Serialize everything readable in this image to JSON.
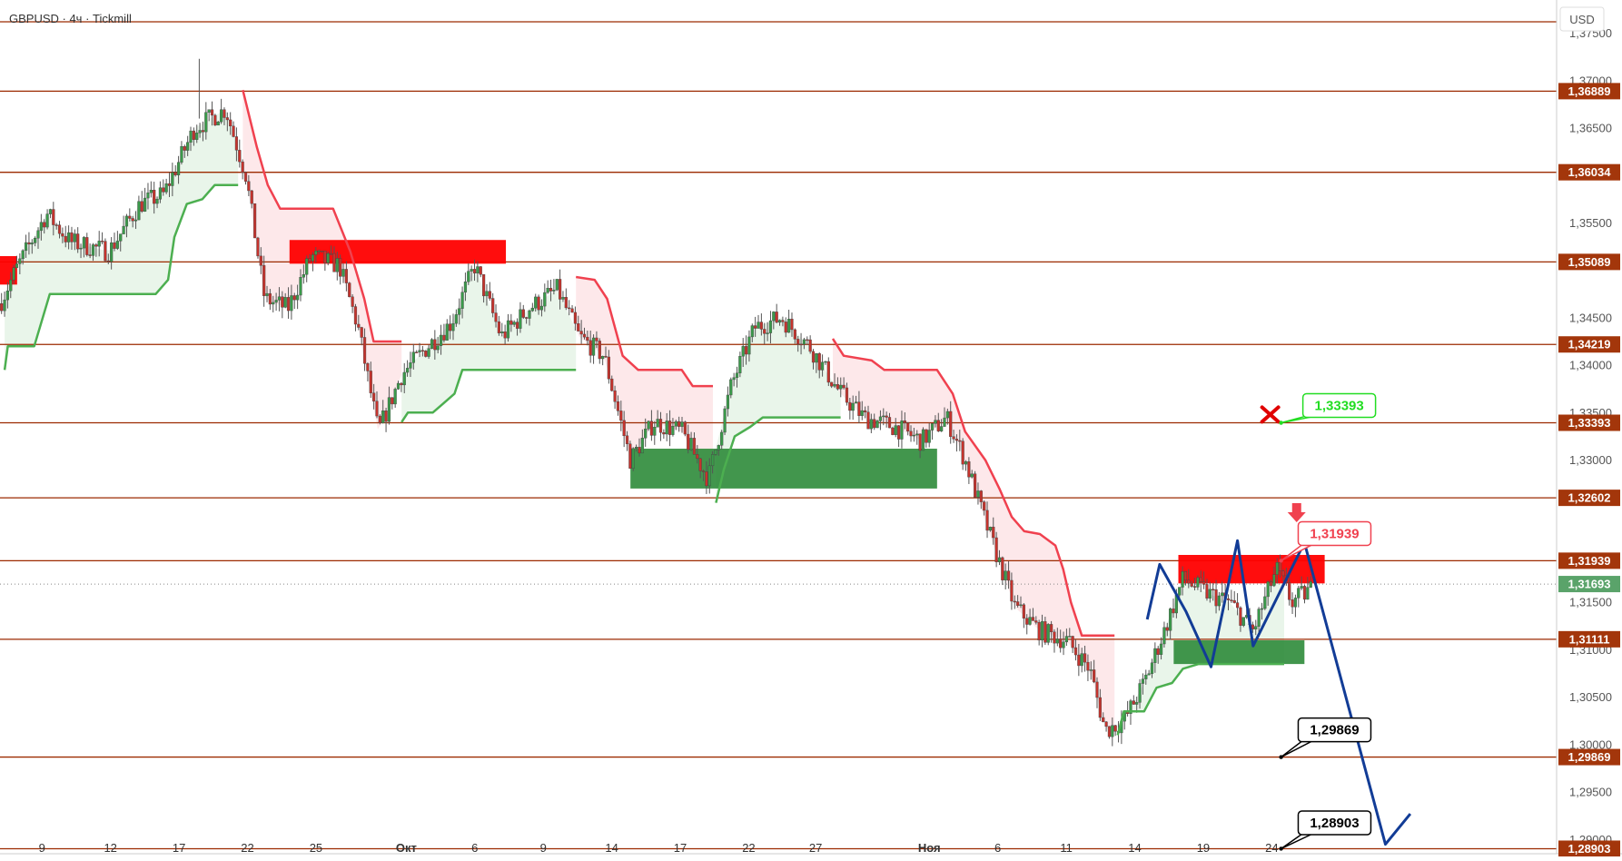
{
  "header": {
    "title": "GBPUSD · 4ч · Tickmill",
    "currency": "USD"
  },
  "colors": {
    "level_line": "#9c2a00",
    "level_label_bg": "#a3360b",
    "bull": "#3a9a4a",
    "bear": "#c5332d",
    "trail_down": "#f0414f",
    "trail_up": "#4caf50",
    "zone_red": "#ff0000",
    "zone_green": "#2e8b3a",
    "projection": "#123c96",
    "current_price_bg": "#5aa36a"
  },
  "chart_data": {
    "type": "candlestick",
    "symbol": "GBPUSD",
    "timeframe": "4ч",
    "broker": "Tickmill",
    "ylim": [
      1.2885,
      1.3785
    ],
    "y_ticks": [
      {
        "value": 1.375,
        "label": "1,37500"
      },
      {
        "value": 1.37,
        "label": "1,37000"
      },
      {
        "value": 1.365,
        "label": "1,36500"
      },
      {
        "value": 1.355,
        "label": "1,35500"
      },
      {
        "value": 1.345,
        "label": "1,34500"
      },
      {
        "value": 1.34,
        "label": "1,34000"
      },
      {
        "value": 1.335,
        "label": "1,33500"
      },
      {
        "value": 1.33,
        "label": "1,33000"
      },
      {
        "value": 1.315,
        "label": "1,31500"
      },
      {
        "value": 1.31,
        "label": "1,31000"
      },
      {
        "value": 1.305,
        "label": "1,30500"
      },
      {
        "value": 1.3,
        "label": "1,30000"
      },
      {
        "value": 1.295,
        "label": "1,29500"
      },
      {
        "value": 1.29,
        "label": "1,29000"
      }
    ],
    "x_ticks": [
      {
        "label": "9",
        "bold": false
      },
      {
        "label": "12",
        "bold": false
      },
      {
        "label": "17",
        "bold": false
      },
      {
        "label": "22",
        "bold": false
      },
      {
        "label": "25",
        "bold": false
      },
      {
        "label": "Окт",
        "bold": true
      },
      {
        "label": "6",
        "bold": false
      },
      {
        "label": "9",
        "bold": false
      },
      {
        "label": "14",
        "bold": false
      },
      {
        "label": "17",
        "bold": false
      },
      {
        "label": "22",
        "bold": false
      },
      {
        "label": "27",
        "bold": false
      },
      {
        "label": "Ноя",
        "bold": true
      },
      {
        "label": "6",
        "bold": false
      },
      {
        "label": "11",
        "bold": false
      },
      {
        "label": "14",
        "bold": false
      },
      {
        "label": "19",
        "bold": false
      },
      {
        "label": "24",
        "bold": false
      }
    ],
    "levels": [
      {
        "value": 1.3762,
        "label": ""
      },
      {
        "value": 1.36889,
        "label": "1,36889"
      },
      {
        "value": 1.36034,
        "label": "1,36034"
      },
      {
        "value": 1.35089,
        "label": "1,35089"
      },
      {
        "value": 1.34219,
        "label": "1,34219"
      },
      {
        "value": 1.33393,
        "label": "1,33393"
      },
      {
        "value": 1.32602,
        "label": "1,32602"
      },
      {
        "value": 1.31939,
        "label": "1,31939"
      },
      {
        "value": 1.31111,
        "label": "1,31111"
      },
      {
        "value": 1.29869,
        "label": "1,29869"
      },
      {
        "value": 1.28903,
        "label": "1,28903"
      }
    ],
    "current_price": {
      "value": 1.31693,
      "label": "1,31693"
    },
    "zones": [
      {
        "color": "red",
        "x0": 0.0,
        "x1": 0.011,
        "y0": 1.3515,
        "y1": 1.3485
      },
      {
        "color": "red",
        "x0": 0.186,
        "x1": 0.325,
        "y0": 1.3532,
        "y1": 1.3507
      },
      {
        "color": "green",
        "x0": 0.405,
        "x1": 0.602,
        "y0": 1.3312,
        "y1": 1.327
      },
      {
        "color": "red",
        "x0": 0.757,
        "x1": 0.851,
        "y0": 1.32,
        "y1": 1.317
      },
      {
        "color": "green",
        "x0": 0.754,
        "x1": 0.838,
        "y0": 1.311,
        "y1": 1.3085
      }
    ],
    "candles_shown": 430,
    "price_path": [
      {
        "t": 0.0,
        "p": 1.3465
      },
      {
        "t": 0.01,
        "p": 1.35
      },
      {
        "t": 0.03,
        "p": 1.356
      },
      {
        "t": 0.045,
        "p": 1.353
      },
      {
        "t": 0.07,
        "p": 1.352
      },
      {
        "t": 0.09,
        "p": 1.357
      },
      {
        "t": 0.105,
        "p": 1.358
      },
      {
        "t": 0.125,
        "p": 1.365
      },
      {
        "t": 0.145,
        "p": 1.367
      },
      {
        "t": 0.158,
        "p": 1.36
      },
      {
        "t": 0.17,
        "p": 1.347
      },
      {
        "t": 0.185,
        "p": 1.346
      },
      {
        "t": 0.2,
        "p": 1.3515
      },
      {
        "t": 0.218,
        "p": 1.3505
      },
      {
        "t": 0.23,
        "p": 1.344
      },
      {
        "t": 0.243,
        "p": 1.333
      },
      {
        "t": 0.258,
        "p": 1.339
      },
      {
        "t": 0.272,
        "p": 1.3415
      },
      {
        "t": 0.29,
        "p": 1.3445
      },
      {
        "t": 0.305,
        "p": 1.3505
      },
      {
        "t": 0.322,
        "p": 1.343
      },
      {
        "t": 0.34,
        "p": 1.346
      },
      {
        "t": 0.358,
        "p": 1.348
      },
      {
        "t": 0.372,
        "p": 1.343
      },
      {
        "t": 0.388,
        "p": 1.341
      },
      {
        "t": 0.405,
        "p": 1.33
      },
      {
        "t": 0.42,
        "p": 1.334
      },
      {
        "t": 0.438,
        "p": 1.333
      },
      {
        "t": 0.455,
        "p": 1.328
      },
      {
        "t": 0.47,
        "p": 1.338
      },
      {
        "t": 0.485,
        "p": 1.344
      },
      {
        "t": 0.502,
        "p": 1.345
      },
      {
        "t": 0.52,
        "p": 1.342
      },
      {
        "t": 0.54,
        "p": 1.337
      },
      {
        "t": 0.555,
        "p": 1.3345
      },
      {
        "t": 0.575,
        "p": 1.3335
      },
      {
        "t": 0.592,
        "p": 1.332
      },
      {
        "t": 0.608,
        "p": 1.3345
      },
      {
        "t": 0.62,
        "p": 1.33
      },
      {
        "t": 0.635,
        "p": 1.3225
      },
      {
        "t": 0.652,
        "p": 1.3145
      },
      {
        "t": 0.668,
        "p": 1.312
      },
      {
        "t": 0.685,
        "p": 1.311
      },
      {
        "t": 0.7,
        "p": 1.308
      },
      {
        "t": 0.71,
        "p": 1.3015
      },
      {
        "t": 0.722,
        "p": 1.3025
      },
      {
        "t": 0.735,
        "p": 1.3065
      },
      {
        "t": 0.748,
        "p": 1.312
      },
      {
        "t": 0.76,
        "p": 1.3175
      },
      {
        "t": 0.775,
        "p": 1.316
      },
      {
        "t": 0.79,
        "p": 1.315
      },
      {
        "t": 0.805,
        "p": 1.312
      },
      {
        "t": 0.82,
        "p": 1.3185
      },
      {
        "t": 0.83,
        "p": 1.315
      },
      {
        "t": 0.843,
        "p": 1.3165
      }
    ],
    "trail_segments": [
      {
        "kind": "up",
        "points": [
          [
            0.003,
            1.3395
          ],
          [
            0.005,
            1.342
          ],
          [
            0.022,
            1.342
          ],
          [
            0.032,
            1.3475
          ],
          [
            0.1,
            1.3475
          ],
          [
            0.108,
            1.349
          ],
          [
            0.112,
            1.3535
          ],
          [
            0.12,
            1.357
          ],
          [
            0.13,
            1.3575
          ],
          [
            0.138,
            1.359
          ],
          [
            0.153,
            1.359
          ]
        ]
      },
      {
        "kind": "down",
        "points": [
          [
            0.156,
            1.369
          ],
          [
            0.165,
            1.363
          ],
          [
            0.172,
            1.359
          ],
          [
            0.18,
            1.3565
          ],
          [
            0.214,
            1.3565
          ],
          [
            0.225,
            1.352
          ],
          [
            0.234,
            1.347
          ],
          [
            0.24,
            1.3425
          ],
          [
            0.258,
            1.3425
          ]
        ]
      },
      {
        "kind": "up",
        "points": [
          [
            0.258,
            1.334
          ],
          [
            0.262,
            1.335
          ],
          [
            0.278,
            1.335
          ],
          [
            0.285,
            1.336
          ],
          [
            0.292,
            1.337
          ],
          [
            0.297,
            1.3395
          ],
          [
            0.37,
            1.3395
          ]
        ]
      },
      {
        "kind": "down",
        "points": [
          [
            0.37,
            1.3493
          ],
          [
            0.382,
            1.349
          ],
          [
            0.39,
            1.347
          ],
          [
            0.4,
            1.341
          ],
          [
            0.41,
            1.3395
          ],
          [
            0.438,
            1.3395
          ],
          [
            0.445,
            1.3378
          ],
          [
            0.458,
            1.3378
          ]
        ]
      },
      {
        "kind": "up",
        "points": [
          [
            0.46,
            1.3255
          ],
          [
            0.465,
            1.329
          ],
          [
            0.472,
            1.3325
          ],
          [
            0.482,
            1.3335
          ],
          [
            0.49,
            1.3345
          ],
          [
            0.54,
            1.3345
          ]
        ]
      },
      {
        "kind": "down",
        "points": [
          [
            0.535,
            1.3428
          ],
          [
            0.542,
            1.341
          ],
          [
            0.56,
            1.3405
          ],
          [
            0.568,
            1.3395
          ],
          [
            0.602,
            1.3395
          ],
          [
            0.612,
            1.337
          ],
          [
            0.62,
            1.333
          ],
          [
            0.633,
            1.33
          ],
          [
            0.642,
            1.327
          ],
          [
            0.65,
            1.324
          ],
          [
            0.658,
            1.3225
          ],
          [
            0.668,
            1.3222
          ],
          [
            0.678,
            1.321
          ],
          [
            0.683,
            1.3185
          ],
          [
            0.688,
            1.315
          ],
          [
            0.695,
            1.3115
          ],
          [
            0.716,
            1.3115
          ]
        ]
      },
      {
        "kind": "up",
        "points": [
          [
            0.718,
            1.301
          ],
          [
            0.722,
            1.3035
          ],
          [
            0.735,
            1.3035
          ],
          [
            0.743,
            1.306
          ],
          [
            0.753,
            1.3065
          ],
          [
            0.76,
            1.308
          ],
          [
            0.77,
            1.3085
          ],
          [
            0.825,
            1.3085
          ]
        ]
      }
    ],
    "projection_path": [
      {
        "x": 0.737,
        "y": 1.3132
      },
      {
        "x": 0.745,
        "y": 1.319
      },
      {
        "x": 0.762,
        "y": 1.314
      },
      {
        "x": 0.778,
        "y": 1.3082
      },
      {
        "x": 0.795,
        "y": 1.3215
      },
      {
        "x": 0.805,
        "y": 1.3104
      },
      {
        "x": 0.838,
        "y": 1.3213
      },
      {
        "x": 0.89,
        "y": 1.2895
      },
      {
        "x": 0.906,
        "y": 1.2927
      }
    ],
    "callouts": [
      {
        "label": "1,33393",
        "color": "#22dd22",
        "value": 1.33393,
        "invalidated": true
      },
      {
        "label": "1,31939",
        "color": "#f0414f",
        "value": 1.31939,
        "invalidated": false
      },
      {
        "label": "1,29869",
        "color": "#000000",
        "value": 1.29869,
        "invalidated": false
      },
      {
        "label": "1,28903",
        "color": "#000000",
        "value": 1.28903,
        "invalidated": false
      }
    ],
    "cross_icon": "cross-icon",
    "arrow_icon": "down-arrow-icon"
  }
}
